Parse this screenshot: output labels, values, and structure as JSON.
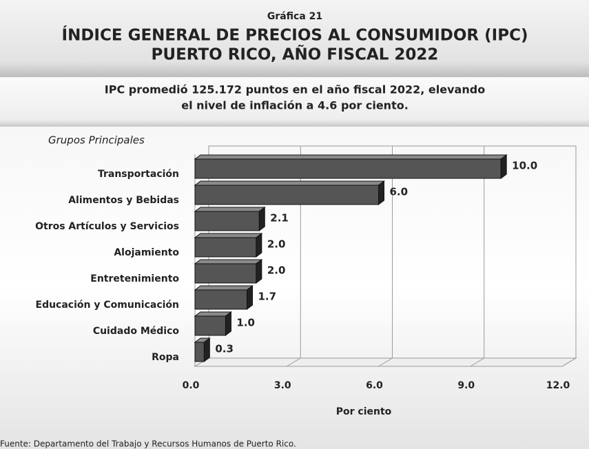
{
  "chart_data": {
    "type": "bar3d",
    "orientation": "horizontal",
    "label": "Gráfica 21",
    "title": "ÍNDICE GENERAL DE PRECIOS AL CONSUMIDOR (IPC)",
    "subtitle": "PUERTO RICO, AÑO FISCAL 2022",
    "annotation": [
      "IPC promedió 125.172 puntos en el año fiscal 2022, elevando",
      "el nivel de inflación a 4.6 por ciento."
    ],
    "y_label": "Grupos Principales",
    "x_label": "Por ciento",
    "source": "Fuente: Departamento del Trabajo y Recursos Humanos de Puerto Rico.",
    "categories": [
      "Transportación",
      "Alimentos y Bebidas",
      "Otros Artículos y Servicios",
      "Alojamiento",
      "Entretenimiento",
      "Educación y Comunicación",
      "Cuidado Médico",
      "Ropa"
    ],
    "values": [
      10.0,
      6.0,
      2.1,
      2.0,
      2.0,
      1.7,
      1.0,
      0.3
    ],
    "value_labels": [
      "10.0",
      "6.0",
      "2.1",
      "2.0",
      "2.0",
      "1.7",
      "1.0",
      "0.3"
    ],
    "color": "#555555",
    "xlim": [
      0,
      12
    ],
    "xticks": [
      {
        "value": 0,
        "label": "0.0"
      },
      {
        "value": 3,
        "label": "3.0"
      },
      {
        "value": 6,
        "label": "6.0"
      },
      {
        "value": 9,
        "label": "9.0"
      },
      {
        "value": 12,
        "label": "12.0"
      }
    ],
    "grid": true
  }
}
